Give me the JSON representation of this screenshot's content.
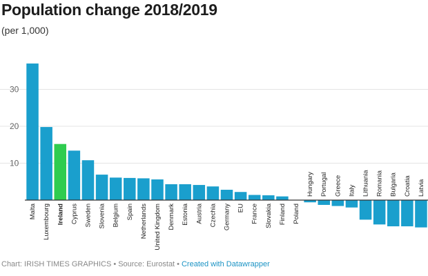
{
  "chart_data": {
    "type": "bar",
    "title": "Population change 2018/2019",
    "subtitle": "(per 1,000)",
    "xlabel": "",
    "ylabel": "",
    "ylim": [
      -8,
      38
    ],
    "yticks": [
      10,
      20,
      30
    ],
    "grid": true,
    "categories": [
      "Malta",
      "Luxembourg",
      "Ireland",
      "Cyprus",
      "Sweden",
      "Slovenia",
      "Belgium",
      "Spain",
      "Netherlands",
      "United Kingdom",
      "Denmark",
      "Estonia",
      "Austria",
      "Czechia",
      "Germany",
      "EU",
      "France",
      "Slovakia",
      "Finland",
      "Poland",
      "Hungary",
      "Portugal",
      "Greece",
      "Italy",
      "Lithuania",
      "Romania",
      "Bulgaria",
      "Croatia",
      "Latvia"
    ],
    "values": [
      37.0,
      19.8,
      15.2,
      13.4,
      10.8,
      6.9,
      6.1,
      6.0,
      5.9,
      5.6,
      4.3,
      4.3,
      4.1,
      3.7,
      2.8,
      2.2,
      1.4,
      1.3,
      1.0,
      0.0,
      -0.6,
      -1.3,
      -1.6,
      -2.0,
      -5.3,
      -6.6,
      -7.1,
      -7.1,
      -7.4
    ],
    "highlight": "Ireland",
    "colors": {
      "bar": "#1a9fcd",
      "highlight": "#2fcc4f",
      "grid": "#e4e4e4",
      "baseline": "#333333",
      "tick_text": "#666666"
    }
  },
  "footer": {
    "chart_label": "Chart: IRISH TIMES GRAPHICS",
    "separator": "•",
    "source_label": "Source: Eurostat",
    "created_with": "Created with Datawrapper"
  }
}
